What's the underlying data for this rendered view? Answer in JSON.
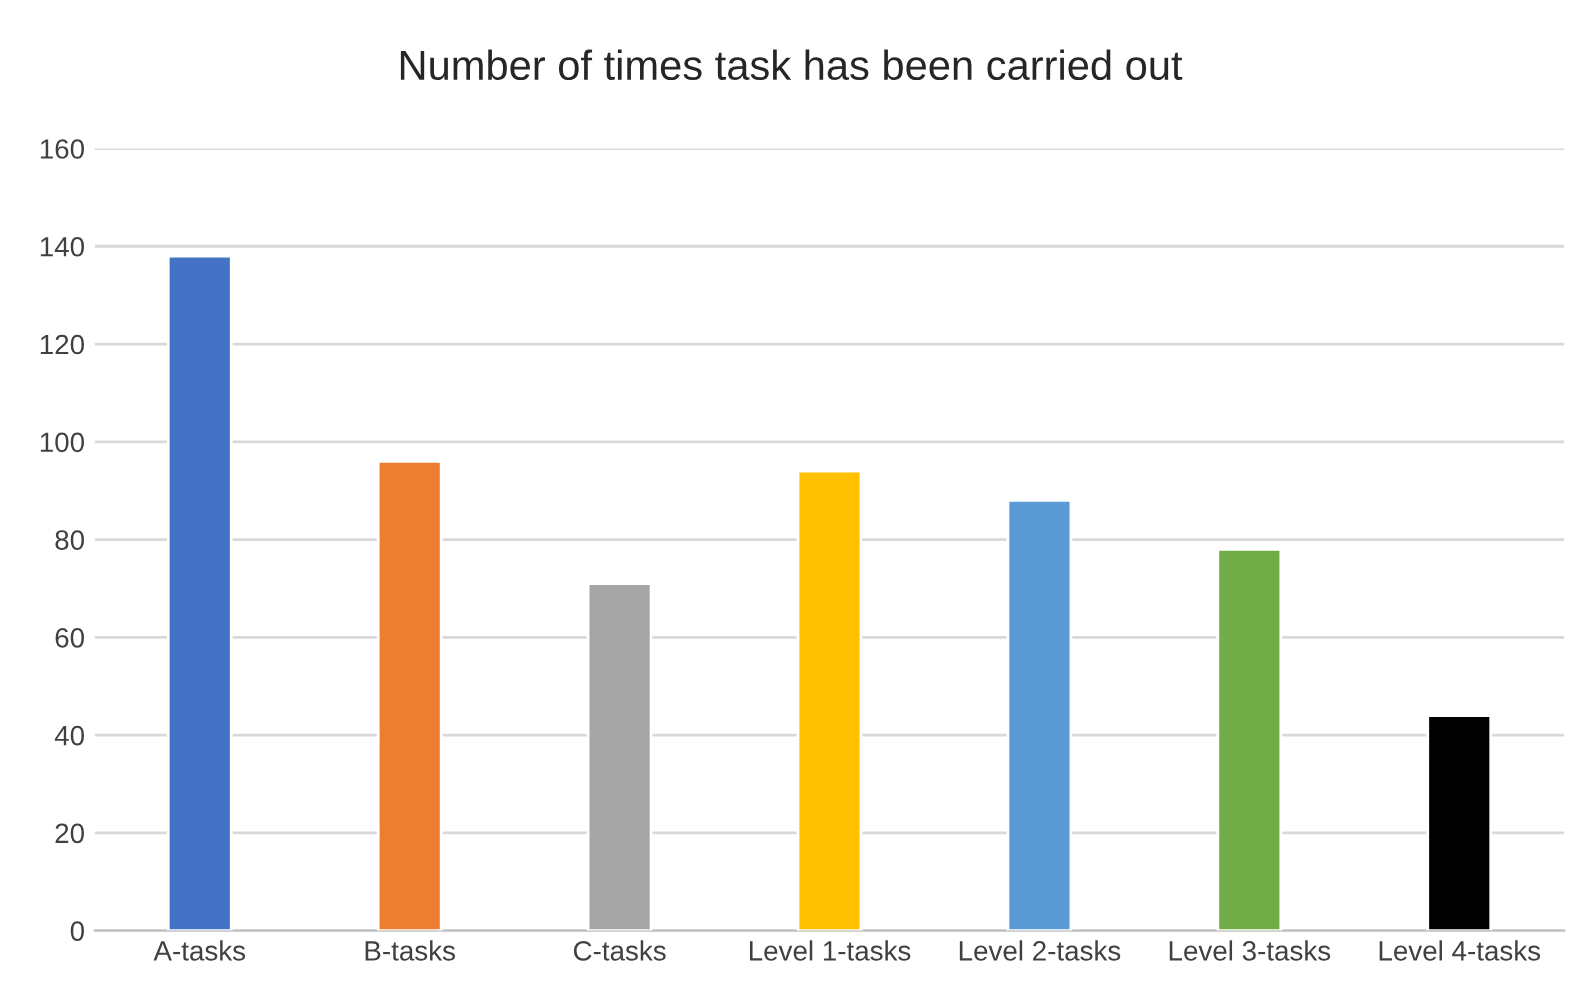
{
  "chart_data": {
    "type": "bar",
    "title": "Number of times task has been carried out",
    "categories": [
      "A-tasks",
      "B-tasks",
      "C-tasks",
      "Level 1-tasks",
      "Level 2-tasks",
      "Level 3-tasks",
      "Level 4-tasks"
    ],
    "values": [
      138,
      96,
      71,
      94,
      88,
      78,
      44
    ],
    "colors": [
      "#4472c4",
      "#ed7d31",
      "#a5a5a5",
      "#ffc000",
      "#5b9bd5",
      "#70ad47",
      "#000000"
    ],
    "ylim": [
      0,
      160
    ],
    "yticks": [
      0,
      20,
      40,
      60,
      80,
      100,
      120,
      140,
      160
    ],
    "grid": "y"
  }
}
